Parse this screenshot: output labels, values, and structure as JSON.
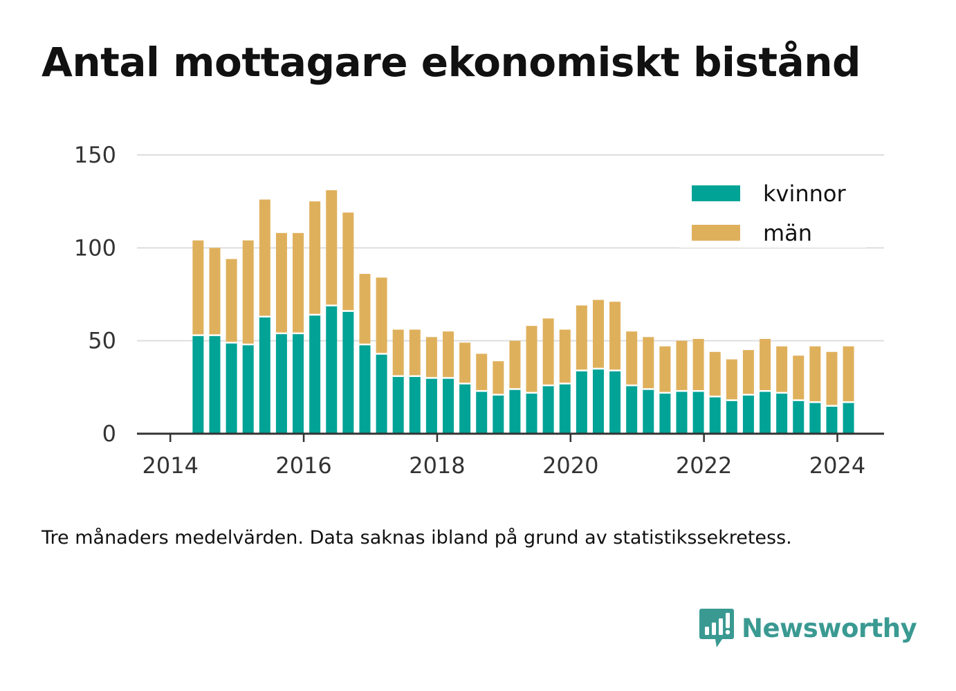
{
  "title": "Antal mottagare ekonomiskt bistånd",
  "note": "Tre månaders medelvärden. Data saknas ibland på grund av statistikssekretess.",
  "logo": {
    "text": "Newsworthy",
    "icon": "bar-chart-speech-bubble-icon"
  },
  "colors": {
    "kvinnor": "#00a396",
    "man": "#dfb05c",
    "grid": "#dddddd",
    "axis": "#333333",
    "logo": "#3a9a92"
  },
  "chart_data": {
    "type": "bar",
    "stacked": true,
    "title": "Antal mottagare ekonomiskt bistånd",
    "xlabel": "",
    "ylabel": "",
    "ylim": [
      0,
      150
    ],
    "yticks": [
      0,
      50,
      100,
      150
    ],
    "xticks": [
      "2014",
      "2016",
      "2018",
      "2020",
      "2022",
      "2024"
    ],
    "x_tick_years": [
      2014,
      2016,
      2018,
      2020,
      2022,
      2024
    ],
    "xlim": [
      2013.5,
      2024.7
    ],
    "grid": true,
    "legend_position": "top-right",
    "x": [
      "2014-06",
      "2014-09",
      "2014-12",
      "2015-03",
      "2015-06",
      "2015-09",
      "2015-12",
      "2016-03",
      "2016-06",
      "2016-09",
      "2016-12",
      "2017-03",
      "2017-06",
      "2017-09",
      "2017-12",
      "2018-03",
      "2018-06",
      "2018-09",
      "2018-12",
      "2019-03",
      "2019-06",
      "2019-09",
      "2019-12",
      "2020-03",
      "2020-06",
      "2020-09",
      "2020-12",
      "2021-03",
      "2021-06",
      "2021-09",
      "2021-12",
      "2022-03",
      "2022-06",
      "2022-09",
      "2022-12",
      "2023-03",
      "2023-06",
      "2023-09",
      "2023-12",
      "2024-03"
    ],
    "series": [
      {
        "name": "kvinnor",
        "color": "#00a396",
        "values": [
          53,
          53,
          49,
          48,
          63,
          54,
          54,
          64,
          69,
          66,
          48,
          43,
          31,
          31,
          30,
          30,
          27,
          23,
          21,
          24,
          22,
          26,
          27,
          34,
          35,
          34,
          26,
          24,
          22,
          23,
          23,
          20,
          18,
          21,
          23,
          22,
          18,
          17,
          15,
          17
        ]
      },
      {
        "name": "män",
        "color": "#dfb05c",
        "values": [
          51,
          47,
          45,
          56,
          63,
          54,
          54,
          61,
          62,
          53,
          38,
          41,
          25,
          25,
          22,
          25,
          22,
          20,
          18,
          26,
          36,
          36,
          29,
          35,
          37,
          37,
          29,
          28,
          25,
          27,
          28,
          24,
          22,
          24,
          28,
          25,
          24,
          30,
          29,
          30
        ]
      }
    ]
  }
}
